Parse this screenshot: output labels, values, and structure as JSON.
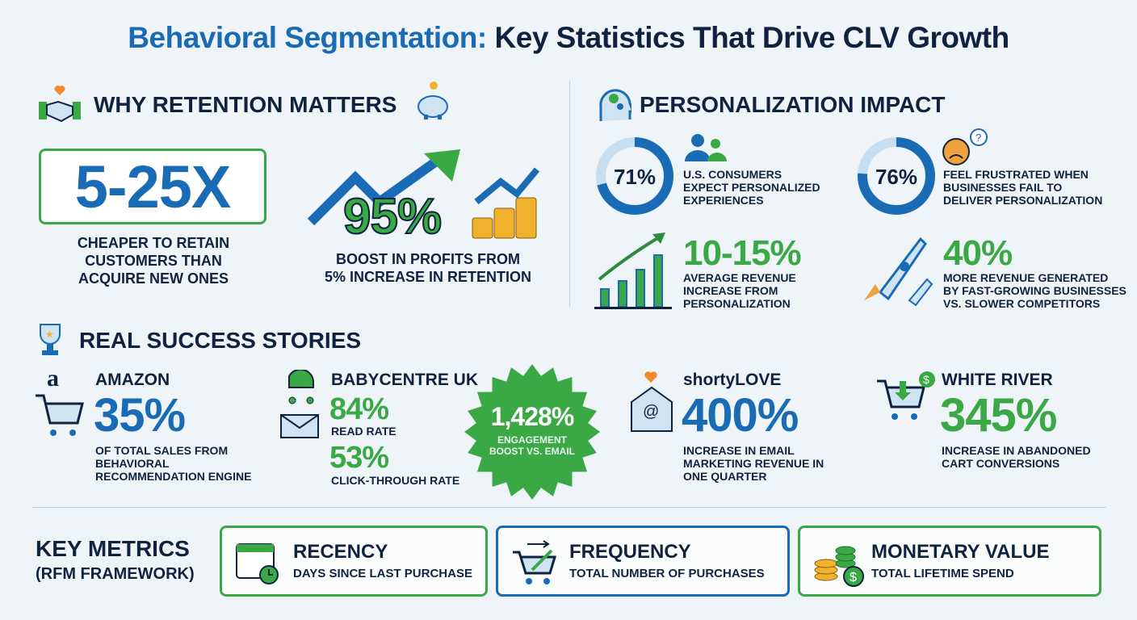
{
  "title": {
    "part1": "Behavioral Segmentation:",
    "part2": "Key Statistics That Drive CLV Growth"
  },
  "retention": {
    "heading": "Why Retention Matters",
    "stat1": {
      "value": "5-25X",
      "caption_l1": "Cheaper to retain",
      "caption_l2": "customers than",
      "caption_l3": "acquire new ones"
    },
    "stat2": {
      "value": "95%",
      "caption_l1": "Boost in profits from",
      "caption_l2": "5% increase in retention"
    }
  },
  "personalization": {
    "heading": "Personalization Impact",
    "items": [
      {
        "value": "71%",
        "fill": 0.71,
        "l1": "U.S. consumers",
        "l2": "expect personalized",
        "l3": "experiences"
      },
      {
        "value": "76%",
        "fill": 0.76,
        "l1": "Feel frustrated when",
        "l2": "businesses fail to",
        "l3": "deliver personalization"
      },
      {
        "value": "10-15%",
        "l1": "Average revenue",
        "l2": "increase from",
        "l3": "personalization"
      },
      {
        "value": "40%",
        "l1": "More revenue generated",
        "l2": "by fast-growing businesses",
        "l3": "vs. slower competitors"
      }
    ]
  },
  "stories": {
    "heading": "Real Success Stories",
    "amazon": {
      "name": "Amazon",
      "logo": "a",
      "value": "35%",
      "l1": "of total sales from",
      "l2": "behavioral",
      "l3": "recommendation engine"
    },
    "babycentre": {
      "name": "BabyCentre UK",
      "v1": "84%",
      "c1": "Read rate",
      "v2": "53%",
      "c2": "Click-through rate"
    },
    "burst": {
      "value": "1,428%",
      "l1": "Engagement",
      "l2": "boost vs. email"
    },
    "shortylove": {
      "name": "shortyLOVE",
      "value": "400%",
      "l1": "increase in email",
      "l2": "marketing revenue in",
      "l3": "one quarter"
    },
    "whiteriver": {
      "name": "White River",
      "value": "345%",
      "l1": "increase in abandoned",
      "l2": "cart conversions"
    }
  },
  "metrics": {
    "heading_l1": "Key Metrics",
    "heading_l2": "(RFM Framework)",
    "cards": [
      {
        "title": "Recency",
        "sub": "Days since last purchase"
      },
      {
        "title": "Frequency",
        "sub": "Total number of purchases"
      },
      {
        "title": "Monetary Value",
        "sub": "Total lifetime spend"
      }
    ]
  },
  "colors": {
    "blue": "#1a6bb5",
    "green": "#3aa845",
    "navy": "#0f2340",
    "background": "#eef4f8"
  }
}
